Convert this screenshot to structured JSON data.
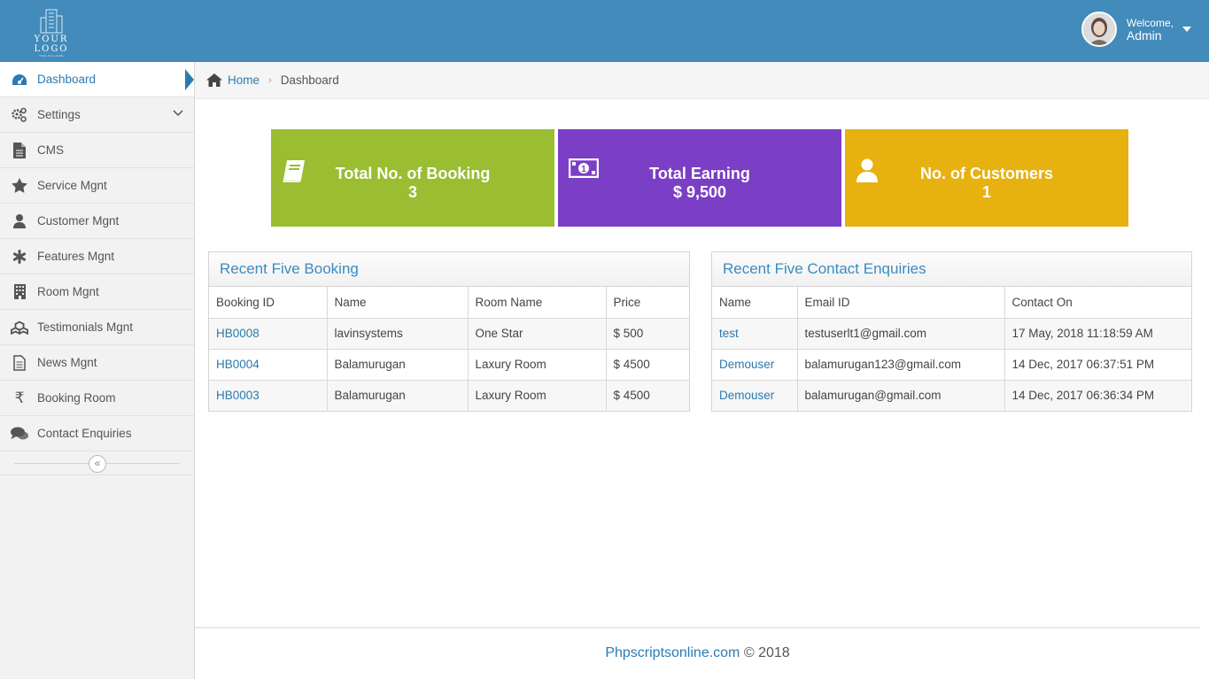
{
  "header": {
    "logo_text": "YOUR LOGO",
    "logo_tagline": "TAGLINE HERE",
    "welcome": "Welcome,",
    "user_name": "Admin"
  },
  "sidebar": {
    "items": [
      {
        "label": "Dashboard",
        "icon": "dashboard-icon"
      },
      {
        "label": "Settings",
        "icon": "gears-icon"
      },
      {
        "label": "CMS",
        "icon": "file-icon"
      },
      {
        "label": "Service Mgnt",
        "icon": "star-icon"
      },
      {
        "label": "Customer Mgnt",
        "icon": "user-icon"
      },
      {
        "label": "Features Mgnt",
        "icon": "asterisk-icon"
      },
      {
        "label": "Room Mgnt",
        "icon": "building-icon"
      },
      {
        "label": "Testimonials Mgnt",
        "icon": "cubes-icon"
      },
      {
        "label": "News Mgnt",
        "icon": "file-text-icon"
      },
      {
        "label": "Booking Room",
        "icon": "rupee-icon"
      },
      {
        "label": "Contact Enquiries",
        "icon": "comments-icon"
      }
    ],
    "collapse_glyph": "«"
  },
  "breadcrumb": {
    "home": "Home",
    "current": "Dashboard"
  },
  "stats": [
    {
      "title": "Total No. of Booking",
      "value": "3",
      "icon": "book-icon",
      "color": "#9abd31"
    },
    {
      "title": "Total Earning",
      "value": "$ 9,500",
      "icon": "money-icon",
      "color": "#7a3fc5"
    },
    {
      "title": "No. of Customers",
      "value": "1",
      "icon": "user-icon",
      "color": "#e7b10f"
    }
  ],
  "bookings": {
    "title": "Recent Five Booking",
    "columns": [
      "Booking ID",
      "Name",
      "Room Name",
      "Price"
    ],
    "rows": [
      [
        "HB0008",
        "lavinsystems",
        "One Star",
        "$ 500"
      ],
      [
        "HB0004",
        "Balamurugan",
        "Laxury Room",
        "$ 4500"
      ],
      [
        "HB0003",
        "Balamurugan",
        "Laxury Room",
        "$ 4500"
      ]
    ]
  },
  "enquiries": {
    "title": "Recent Five Contact Enquiries",
    "columns": [
      "Name",
      "Email ID",
      "Contact On"
    ],
    "rows": [
      [
        "test",
        "testuserlt1@gmail.com",
        "17 May, 2018 11:18:59 AM"
      ],
      [
        "Demouser",
        "balamurugan123@gmail.com",
        "14 Dec, 2017 06:37:51 PM"
      ],
      [
        "Demouser",
        "balamurugan@gmail.com",
        "14 Dec, 2017 06:36:34 PM"
      ]
    ]
  },
  "footer": {
    "link": "Phpscriptsonline.com",
    "copyright": "© 2018"
  },
  "colors": {
    "header": "#428bbb",
    "accent": "#2a7ab0"
  }
}
